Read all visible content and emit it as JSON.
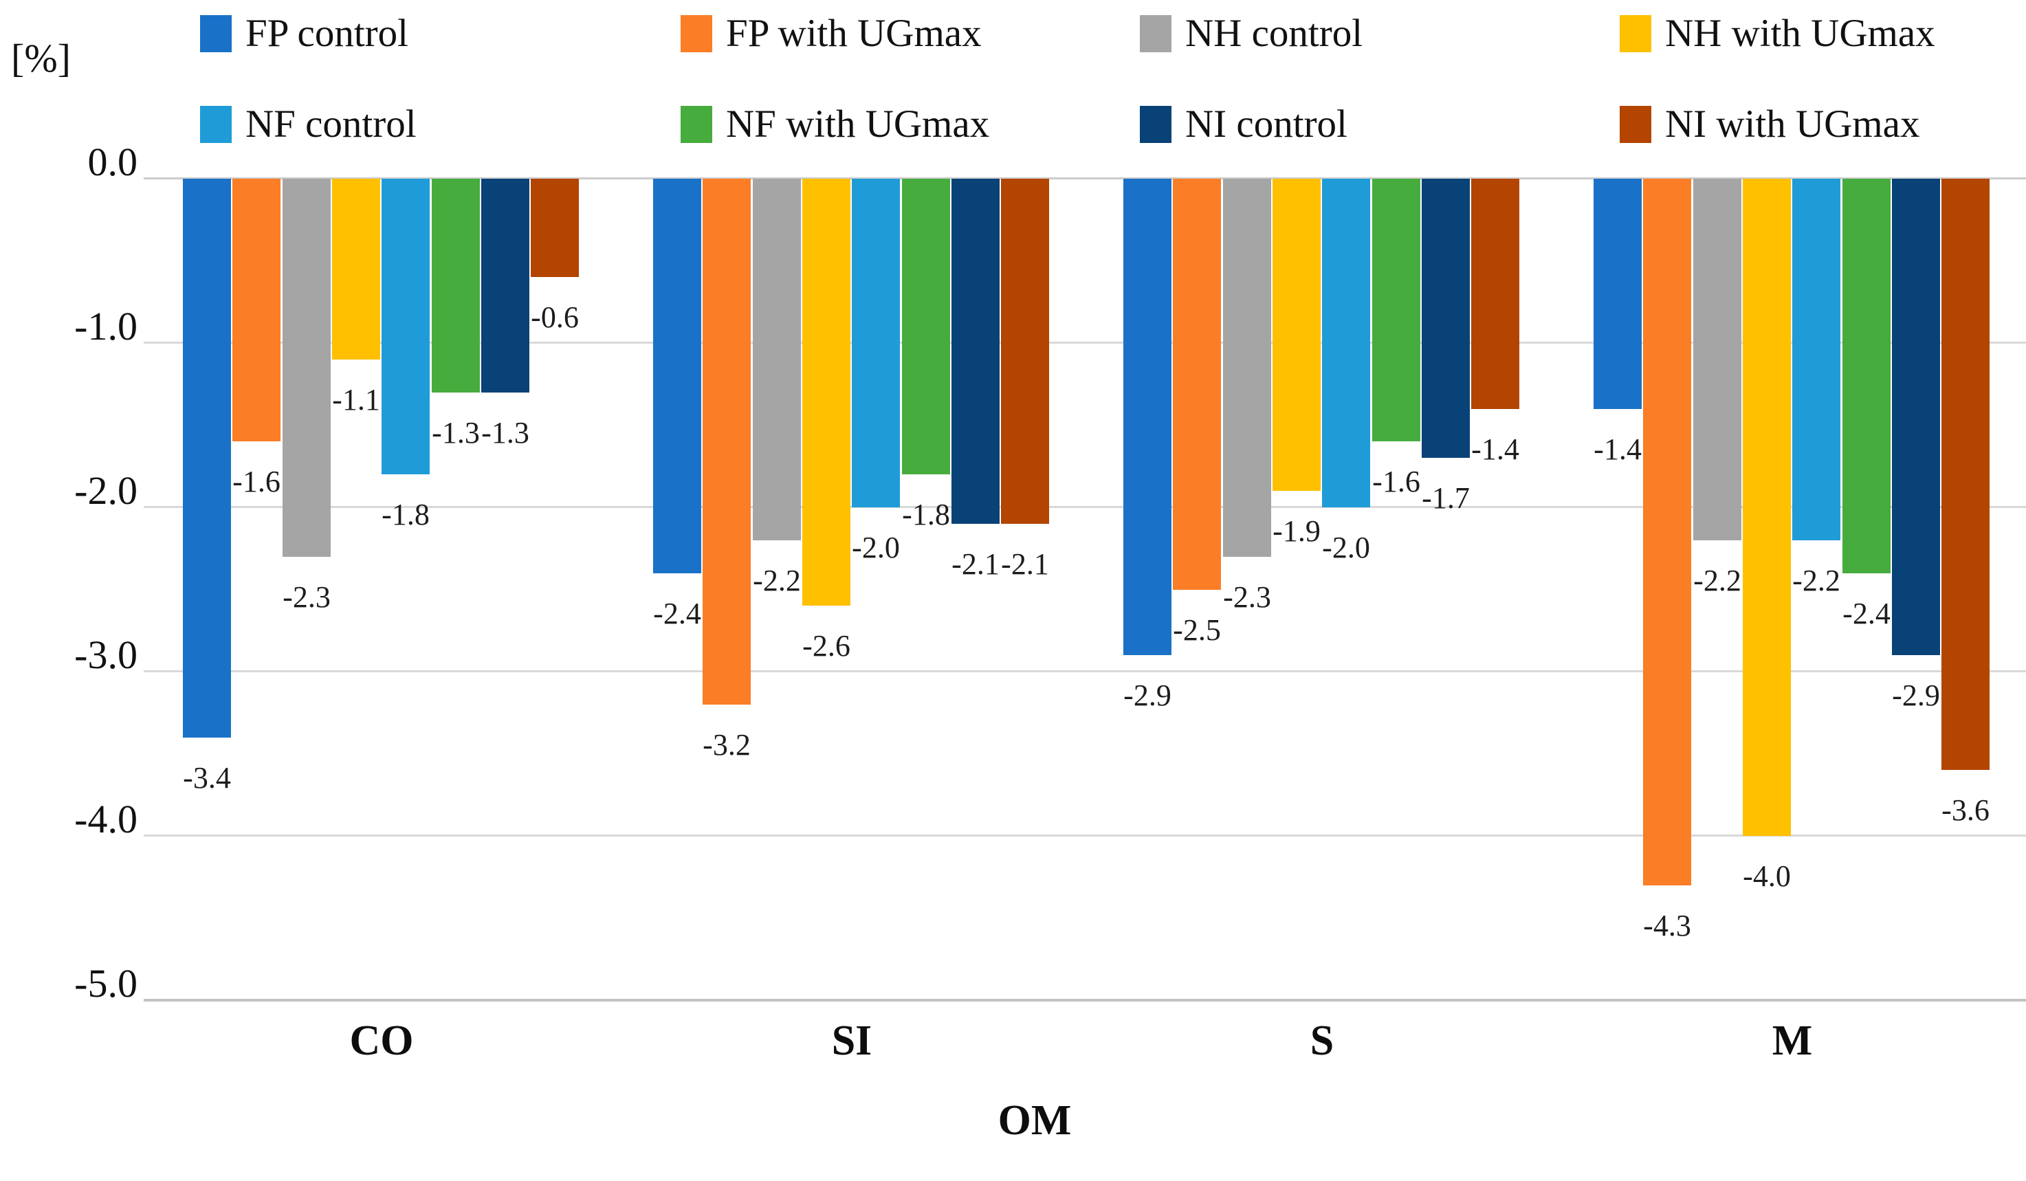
{
  "chart_data": {
    "type": "bar",
    "title": "",
    "ylabel": "[%]",
    "xlabel": "OM",
    "categories": [
      "CO",
      "SI",
      "S",
      "M"
    ],
    "series": [
      {
        "name": "FP control",
        "color": "#1a72c8",
        "values": [
          -3.4,
          -2.4,
          -2.9,
          -1.4
        ]
      },
      {
        "name": "FP with UGmax",
        "color": "#fb7d26",
        "values": [
          -1.6,
          -3.2,
          -2.5,
          -4.3
        ]
      },
      {
        "name": "NH control",
        "color": "#a5a5a5",
        "values": [
          -2.3,
          -2.2,
          -2.3,
          -2.2
        ]
      },
      {
        "name": "NH with UGmax",
        "color": "#ffc000",
        "values": [
          -1.1,
          -2.6,
          -1.9,
          -4.0
        ]
      },
      {
        "name": "NF control",
        "color": "#1f9cd8",
        "values": [
          -1.8,
          -2.0,
          -2.0,
          -2.2
        ]
      },
      {
        "name": "NF with UGmax",
        "color": "#47ac3e",
        "values": [
          -1.3,
          -1.8,
          -1.6,
          -2.4
        ]
      },
      {
        "name": "NI control",
        "color": "#084277",
        "values": [
          -1.3,
          -2.1,
          -1.7,
          -2.9
        ]
      },
      {
        "name": "NI with UGmax",
        "color": "#b34500",
        "values": [
          -0.6,
          -2.1,
          -1.4,
          -3.6
        ]
      }
    ],
    "y_ticks": [
      "0.0",
      "-1.0",
      "-2.0",
      "-3.0",
      "-4.0",
      "-5.0"
    ],
    "ylim": [
      0.0,
      -5.0
    ],
    "grid": true,
    "legend_position": "top",
    "legend_rows": [
      [
        "FP control",
        "FP with UGmax",
        "NH control",
        "NH with UGmax"
      ],
      [
        "NF control",
        "NF with UGmax",
        "NI control",
        "NI with UGmax"
      ]
    ],
    "data_labels": true
  }
}
